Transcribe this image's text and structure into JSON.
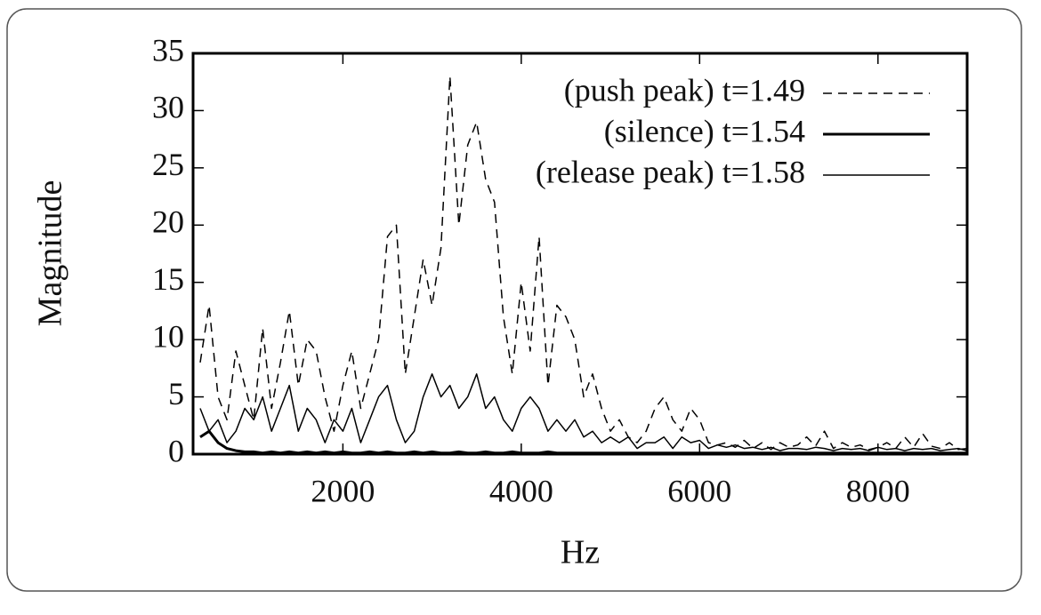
{
  "chart_data": {
    "type": "line",
    "x_label": "Hz",
    "y_label": "Magnitude",
    "xlim": [
      320,
      9000
    ],
    "ylim": [
      0,
      35
    ],
    "xticks": [
      2000,
      4000,
      6000,
      8000
    ],
    "yticks": [
      0,
      5,
      10,
      15,
      20,
      25,
      30,
      35
    ],
    "legend": "top-right",
    "x": [
      400,
      500,
      600,
      700,
      800,
      900,
      1000,
      1100,
      1200,
      1300,
      1400,
      1500,
      1600,
      1700,
      1800,
      1900,
      2000,
      2100,
      2200,
      2300,
      2400,
      2500,
      2600,
      2700,
      2800,
      2900,
      3000,
      3100,
      3200,
      3300,
      3400,
      3500,
      3600,
      3700,
      3800,
      3900,
      4000,
      4100,
      4200,
      4300,
      4400,
      4500,
      4600,
      4700,
      4800,
      4900,
      5000,
      5100,
      5200,
      5300,
      5400,
      5500,
      5600,
      5700,
      5800,
      5900,
      6000,
      6100,
      6200,
      6300,
      6400,
      6500,
      6600,
      6700,
      6800,
      6900,
      7000,
      7100,
      7200,
      7300,
      7400,
      7500,
      7600,
      7700,
      7800,
      7900,
      8000,
      8100,
      8200,
      8300,
      8400,
      8500,
      8600,
      8700,
      8800,
      8900,
      9000
    ],
    "series": [
      {
        "name": "(push peak) t=1.49",
        "color": "#000000",
        "line_style": "dashed",
        "line_width": 1.5,
        "values": [
          8,
          13,
          5,
          3,
          9,
          6,
          3,
          11,
          4,
          8,
          12.5,
          6,
          10,
          9,
          5,
          2,
          6,
          9,
          4,
          7,
          10,
          19,
          20,
          7,
          12,
          17,
          13,
          18,
          33,
          20,
          27,
          29,
          24,
          22,
          12,
          7,
          15,
          9,
          19,
          6,
          13,
          12,
          10,
          5,
          7,
          4,
          2,
          3,
          1.5,
          1,
          2,
          4,
          5,
          3,
          2,
          4,
          3,
          1,
          0.8,
          1,
          0.6,
          1.2,
          0.5,
          1,
          0.4,
          1,
          0.6,
          0.8,
          1.5,
          0.7,
          2,
          0.5,
          1,
          0.6,
          0.8,
          0.4,
          0.6,
          1,
          0.5,
          1.5,
          0.6,
          1.8,
          0.7,
          0.5,
          1,
          0.4,
          0.5
        ]
      },
      {
        "name": "(silence) t=1.54",
        "color": "#000000",
        "line_style": "solid",
        "line_width": 3,
        "values": [
          1.5,
          2,
          1,
          0.5,
          0.3,
          0.2,
          0.2,
          0.1,
          0.2,
          0.1,
          0.2,
          0.1,
          0.2,
          0.1,
          0.2,
          0.1,
          0.2,
          0.1,
          0.1,
          0.2,
          0.1,
          0.2,
          0.1,
          0.1,
          0.2,
          0.1,
          0.2,
          0.1,
          0.1,
          0.2,
          0.1,
          0.1,
          0.2,
          0.1,
          0.1,
          0.2,
          0.1,
          0.1,
          0.1,
          0.2,
          0.1,
          0.1,
          0.1,
          0.1,
          0.1,
          0.1,
          0.1,
          0.1,
          0.1,
          0.1,
          0.1,
          0.1,
          0.1,
          0.1,
          0.1,
          0.1,
          0.1,
          0.1,
          0.1,
          0.1,
          0.1,
          0.1,
          0.1,
          0.1,
          0.1,
          0.1,
          0.1,
          0.1,
          0.1,
          0.1,
          0.1,
          0.1,
          0.1,
          0.1,
          0.1,
          0.1,
          0.1,
          0.1,
          0.1,
          0.1,
          0.1,
          0.1,
          0.1,
          0.1,
          0.1,
          0.1,
          0.1
        ]
      },
      {
        "name": "(release peak) t=1.58",
        "color": "#000000",
        "line_style": "solid",
        "line_width": 1.5,
        "values": [
          4,
          2,
          3,
          1,
          2,
          4,
          3,
          5,
          2,
          4,
          6,
          2,
          4,
          3,
          1,
          3,
          2,
          4,
          1,
          3,
          5,
          6,
          3,
          1,
          2,
          5,
          7,
          5,
          6,
          4,
          5,
          7,
          4,
          5,
          3,
          2,
          4,
          5,
          4,
          2,
          3,
          2,
          3,
          1.5,
          2,
          1,
          1.5,
          1,
          1.5,
          0.5,
          1,
          1,
          1.5,
          0.5,
          1.5,
          1,
          1.2,
          0.5,
          0.8,
          0.6,
          0.8,
          0.5,
          0.6,
          0.4,
          0.6,
          0.3,
          0.5,
          0.5,
          0.4,
          0.6,
          0.5,
          0.3,
          0.5,
          0.4,
          0.5,
          0.3,
          0.6,
          0.4,
          0.5,
          0.3,
          0.5,
          0.4,
          0.5,
          0.3,
          0.4,
          0.5,
          0.3
        ]
      }
    ]
  }
}
